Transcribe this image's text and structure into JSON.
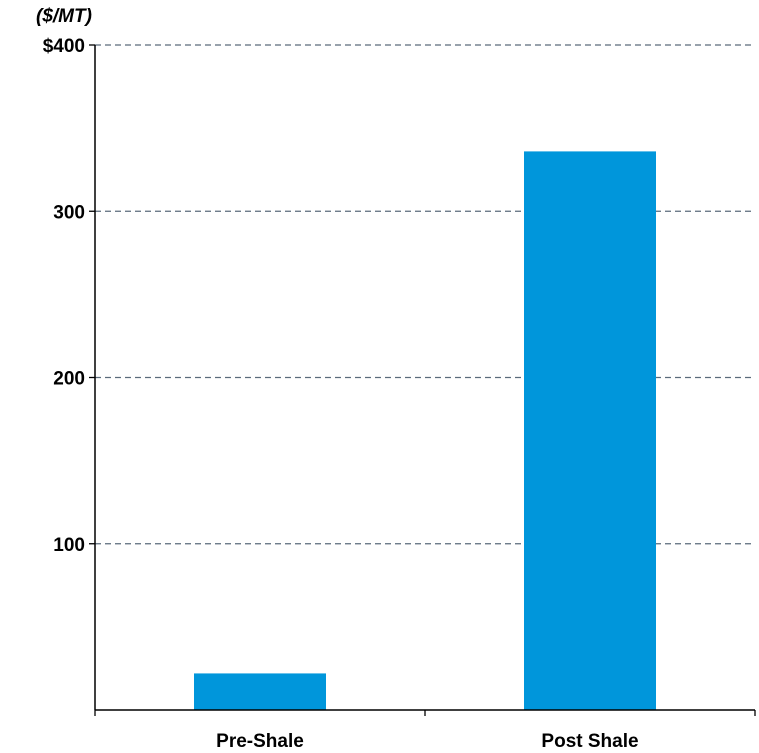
{
  "chart_data": {
    "type": "bar",
    "unit_label": "($/MT)",
    "categories": [
      "Pre-Shale",
      "Post Shale"
    ],
    "values": [
      22,
      336
    ],
    "ylim": [
      0,
      400
    ],
    "yticks": [
      100,
      200,
      300,
      400
    ],
    "ytick_labels": [
      "100",
      "200",
      "300",
      "$400"
    ],
    "grid": true,
    "colors": {
      "bar": "#0096DB",
      "grid": "#5B6B7B",
      "axis": "#000000"
    }
  }
}
